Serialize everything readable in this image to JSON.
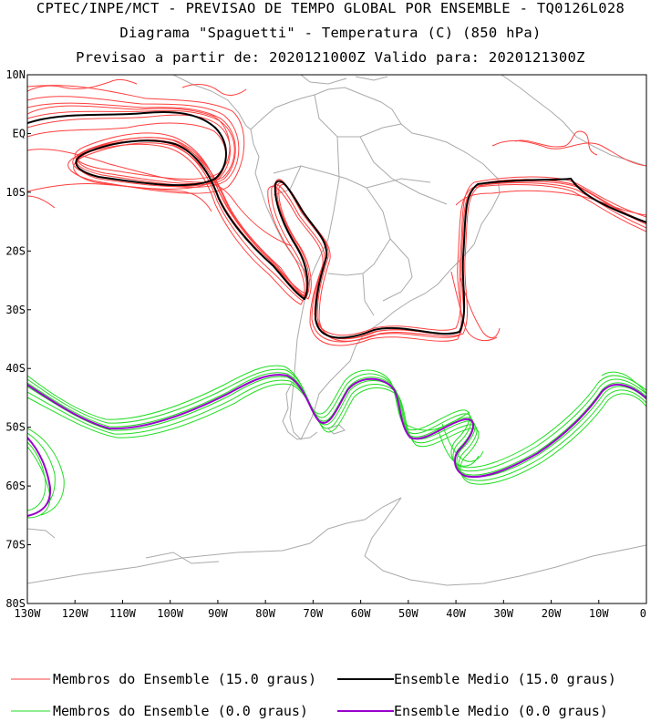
{
  "header": {
    "line1": "CPTEC/INPE/MCT - PREVISAO DE TEMPO GLOBAL POR ENSEMBLE - TQ0126L028",
    "line2": "Diagrama \"Spaguetti\" - Temperatura (C) (850 hPa)",
    "line3": "Previsao a partir de: 2020121000Z  Valido para: 2020121300Z"
  },
  "map": {
    "lat_labels": [
      "10N",
      "EQ",
      "10S",
      "20S",
      "30S",
      "40S",
      "50S",
      "60S",
      "70S",
      "80S"
    ],
    "lon_labels": [
      "130W",
      "120W",
      "110W",
      "100W",
      "90W",
      "80W",
      "70W",
      "60W",
      "50W",
      "40W",
      "30W",
      "20W",
      "10W",
      "0"
    ],
    "colors": {
      "member_15": "#ff3f3f",
      "mean_15": "#000000",
      "member_0": "#22dd22",
      "mean_0": "#9900cc",
      "coastline": "#aaaaaa"
    }
  },
  "legend": {
    "members_15": "Membros do Ensemble (15.0 graus)",
    "mean_15": "Ensemble Medio (15.0 graus)",
    "members_0": "Membros do Ensemble (0.0 graus)",
    "mean_0": "Ensemble Medio (0.0 graus)"
  }
}
